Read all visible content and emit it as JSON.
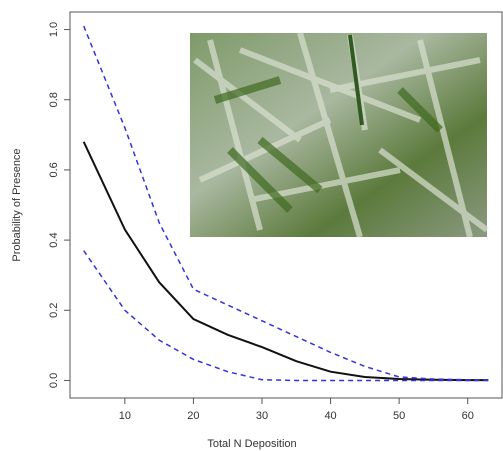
{
  "chart_data": {
    "type": "line",
    "xlabel": "Total N Deposition",
    "ylabel": "Probability of Presence",
    "x": [
      4,
      10,
      15,
      20,
      25,
      30,
      35,
      40,
      45,
      50,
      55,
      60,
      63
    ],
    "series": [
      {
        "color": "#111111",
        "dash": false,
        "values": [
          0.68,
          0.43,
          0.28,
          0.175,
          0.13,
          0.095,
          0.055,
          0.025,
          0.01,
          0.004,
          0.002,
          0.001,
          0.001
        ]
      },
      {
        "color": "#3333dd",
        "dash": true,
        "values": [
          1.01,
          0.72,
          0.45,
          0.26,
          0.215,
          0.17,
          0.125,
          0.08,
          0.04,
          0.01,
          0.004,
          0.002,
          0.001
        ]
      },
      {
        "color": "#3333dd",
        "dash": true,
        "values": [
          0.37,
          0.2,
          0.115,
          0.06,
          0.025,
          0.002,
          0,
          0,
          0,
          0,
          0,
          0,
          0
        ]
      }
    ],
    "xlim": [
      2,
      65
    ],
    "ylim": [
      -0.05,
      1.05
    ],
    "xticks": [
      10,
      20,
      30,
      40,
      50,
      60
    ],
    "yticks": [
      {
        "value": 0,
        "label": "0.0"
      },
      {
        "value": 0.2,
        "label": "0.2"
      },
      {
        "value": 0.4,
        "label": "0.4"
      },
      {
        "value": 0.6,
        "label": "0.6"
      },
      {
        "value": 0.8,
        "label": "0.8"
      },
      {
        "value": 1.0,
        "label": "1.0"
      }
    ]
  }
}
